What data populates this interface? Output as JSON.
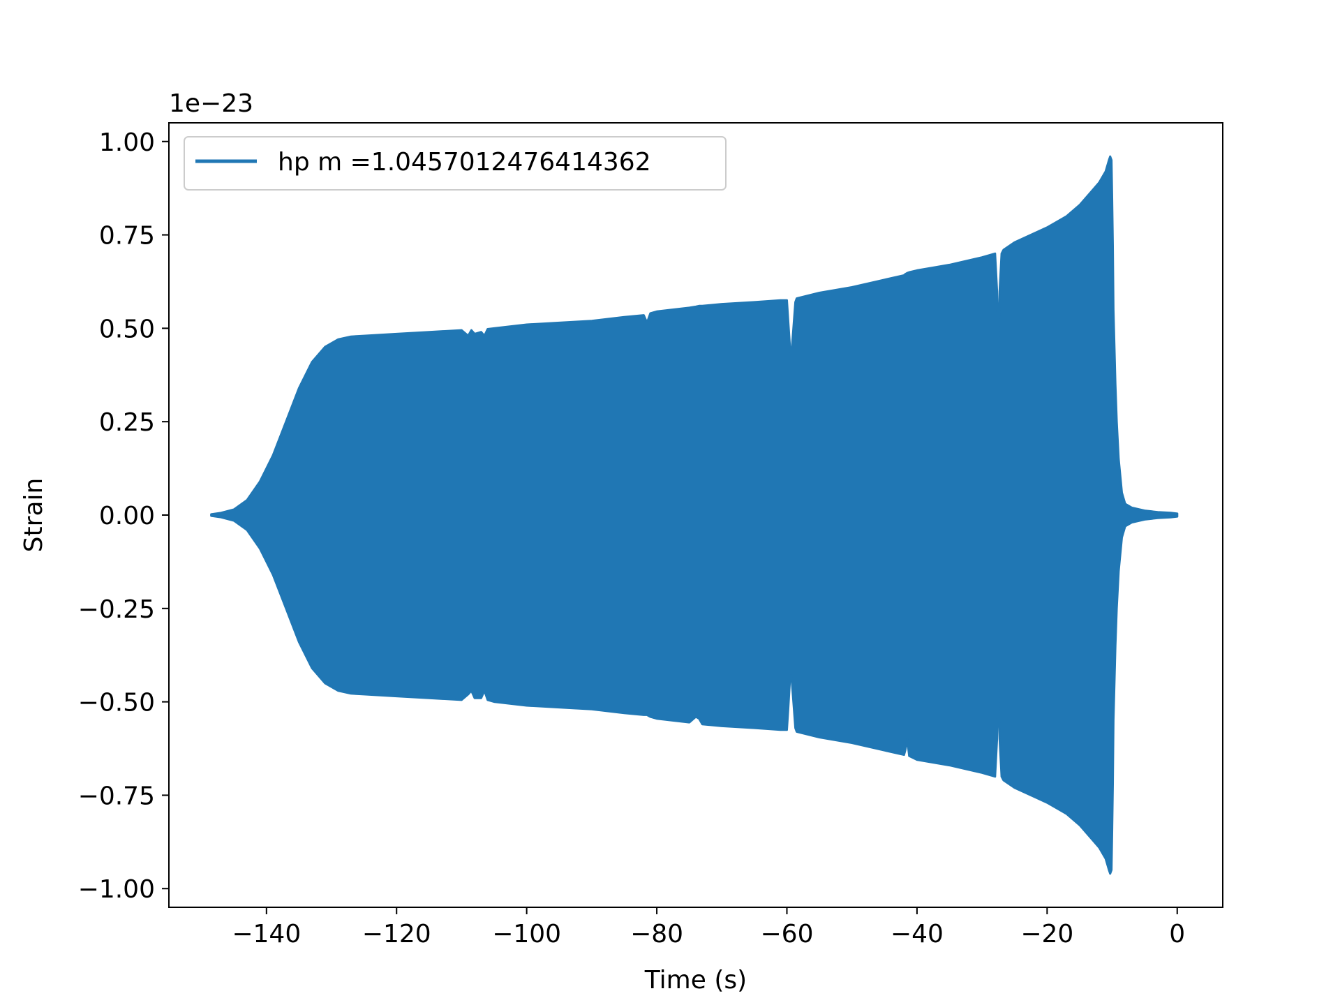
{
  "chart_data": {
    "type": "area",
    "title": "",
    "xlabel": "Time (s)",
    "ylabel": "Strain",
    "y_offset_text": "1e−23",
    "y_scale": 1e-23,
    "xlim": [
      -155,
      7
    ],
    "ylim": [
      -1.05,
      1.05
    ],
    "grid": false,
    "legend": {
      "placement": "top-left",
      "entries": [
        "hp m =1.0457012476414362"
      ]
    },
    "x_ticks": [
      -140,
      -120,
      -100,
      -80,
      -60,
      -40,
      -20,
      0
    ],
    "x_tick_labels": [
      "−140",
      "−120",
      "−100",
      "−80",
      "−60",
      "−40",
      "−20",
      "0"
    ],
    "y_ticks": [
      1.0,
      0.75,
      0.5,
      0.25,
      0.0,
      -0.25,
      -0.5,
      -0.75,
      -1.0
    ],
    "y_tick_labels": [
      "1.00",
      "0.75",
      "0.50",
      "0.25",
      "0.00",
      "−0.25",
      "−0.50",
      "−0.75",
      "−1.00"
    ],
    "colors": {
      "series": "#2077b4",
      "axes": "#000000"
    },
    "series": [
      {
        "name": "hp m =1.0457012476414362",
        "description_of_values": "strain amplitude envelope (in units of 1e-23) vs time in seconds; waveform oscillates densely between +upper and lower",
        "x": [
          -148.5,
          -147,
          -145,
          -143,
          -141,
          -139,
          -137,
          -135,
          -133,
          -131,
          -129,
          -127,
          -125,
          -120,
          -115,
          -110,
          -109,
          -108.5,
          -108,
          -107,
          -106.5,
          -106,
          -105,
          -100,
          -95,
          -90,
          -85,
          -82,
          -81.5,
          -81,
          -80,
          -75,
          -74,
          -73.5,
          -73,
          -70,
          -65,
          -61,
          -60,
          -59.8,
          -59.5,
          -59.3,
          -59,
          -58.7,
          -58.5,
          -55,
          -50,
          -45,
          -42,
          -41.8,
          -41.5,
          -41.2,
          -40,
          -35,
          -30,
          -28,
          -27.7,
          -27.5,
          -27.3,
          -27,
          -26.7,
          -25,
          -20,
          -17,
          -15,
          -13,
          -12,
          -11,
          -10.5,
          -10.3,
          -10.1,
          -10,
          -9.9,
          -9.8,
          -9.5,
          -9.3,
          -9,
          -8.5,
          -8,
          -7,
          -5,
          -3,
          -1,
          0
        ],
        "upper": [
          0.002,
          0.006,
          0.015,
          0.04,
          0.09,
          0.16,
          0.25,
          0.34,
          0.41,
          0.45,
          0.47,
          0.478,
          0.48,
          0.485,
          0.49,
          0.495,
          0.48,
          0.495,
          0.485,
          0.49,
          0.48,
          0.498,
          0.5,
          0.51,
          0.515,
          0.52,
          0.53,
          0.535,
          0.515,
          0.54,
          0.545,
          0.555,
          0.558,
          0.56,
          0.56,
          0.565,
          0.57,
          0.575,
          0.575,
          0.52,
          0.44,
          0.43,
          0.5,
          0.57,
          0.58,
          0.595,
          0.61,
          0.63,
          0.642,
          0.645,
          0.648,
          0.65,
          0.655,
          0.67,
          0.69,
          0.7,
          0.6,
          0.43,
          0.6,
          0.7,
          0.71,
          0.73,
          0.77,
          0.8,
          0.83,
          0.87,
          0.89,
          0.92,
          0.95,
          0.96,
          0.95,
          0.85,
          0.72,
          0.55,
          0.35,
          0.25,
          0.15,
          0.06,
          0.03,
          0.02,
          0.012,
          0.008,
          0.006,
          0.004
        ],
        "lower": [
          -0.002,
          -0.006,
          -0.015,
          -0.04,
          -0.09,
          -0.16,
          -0.25,
          -0.34,
          -0.41,
          -0.45,
          -0.47,
          -0.478,
          -0.48,
          -0.485,
          -0.49,
          -0.495,
          -0.48,
          -0.47,
          -0.49,
          -0.49,
          -0.47,
          -0.495,
          -0.5,
          -0.51,
          -0.515,
          -0.52,
          -0.53,
          -0.535,
          -0.535,
          -0.54,
          -0.545,
          -0.555,
          -0.54,
          -0.545,
          -0.56,
          -0.565,
          -0.57,
          -0.575,
          -0.575,
          -0.52,
          -0.43,
          -0.43,
          -0.5,
          -0.57,
          -0.58,
          -0.595,
          -0.61,
          -0.63,
          -0.642,
          -0.63,
          -0.6,
          -0.645,
          -0.655,
          -0.67,
          -0.69,
          -0.7,
          -0.6,
          -0.43,
          -0.6,
          -0.7,
          -0.71,
          -0.73,
          -0.77,
          -0.8,
          -0.83,
          -0.87,
          -0.89,
          -0.92,
          -0.95,
          -0.96,
          -0.95,
          -0.85,
          -0.72,
          -0.55,
          -0.35,
          -0.25,
          -0.15,
          -0.06,
          -0.03,
          -0.02,
          -0.012,
          -0.008,
          -0.006,
          -0.004
        ]
      }
    ]
  }
}
